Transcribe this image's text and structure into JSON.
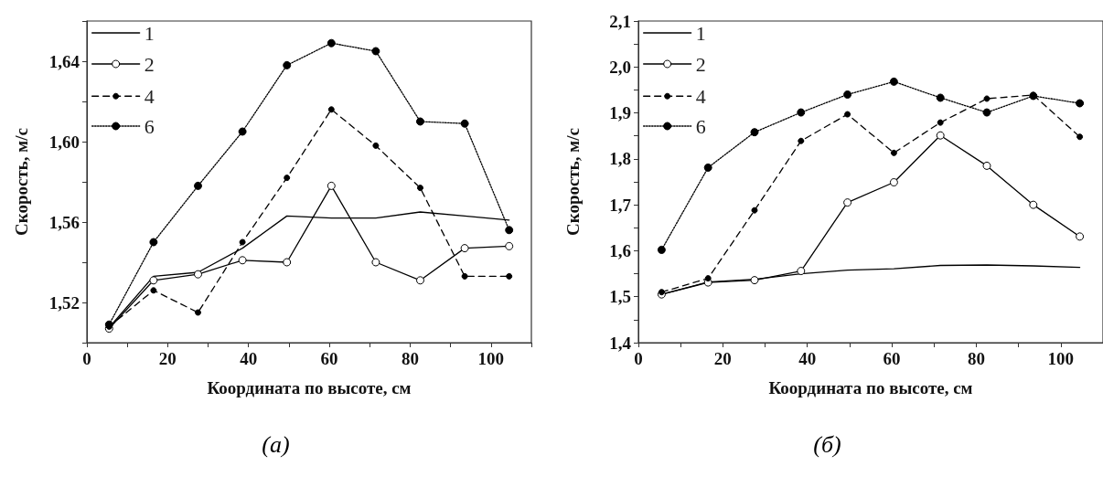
{
  "chart_data": [
    {
      "type": "line",
      "xlabel": "Координата по высоте, см",
      "ylabel": "Скорость, м/с",
      "annotations": [
        "(a)"
      ],
      "x": [
        5.5,
        16.5,
        27.5,
        38.5,
        49.5,
        60.5,
        71.5,
        82.5,
        93.5,
        104.5
      ],
      "xlim": [
        0,
        110
      ],
      "ylim": [
        1.5,
        1.66
      ],
      "xticks": [
        0,
        {
          "value": 10,
          "label": null
        },
        20,
        {
          "value": 30,
          "label": null
        },
        40,
        {
          "value": 50,
          "label": null
        },
        60,
        {
          "value": 70,
          "label": null
        },
        80,
        {
          "value": 90,
          "label": null
        },
        100,
        {
          "value": 110,
          "label": null
        }
      ],
      "yticks": [
        {
          "value": 1.5,
          "label": null
        },
        {
          "value": 1.52,
          "label": "1,52"
        },
        {
          "value": 1.54,
          "label": null
        },
        {
          "value": 1.56,
          "label": "1,56"
        },
        {
          "value": 1.58,
          "label": null
        },
        {
          "value": 1.6,
          "label": "1,60"
        },
        {
          "value": 1.62,
          "label": null
        },
        {
          "value": 1.64,
          "label": "1,64"
        },
        {
          "value": 1.66,
          "label": null
        }
      ],
      "grid": false,
      "legend": "top left",
      "series": [
        {
          "name": "1",
          "color": "#000000",
          "marker": "none",
          "line_style": "solid",
          "values": [
            1.5075,
            1.533,
            1.535,
            1.547,
            1.563,
            1.562,
            1.562,
            1.565,
            1.563,
            1.561
          ]
        },
        {
          "name": "2",
          "color": "#000000",
          "marker": "circle",
          "line_style": "solid",
          "values": [
            1.507,
            1.531,
            1.534,
            1.541,
            1.54,
            1.578,
            1.54,
            1.531,
            1.547,
            1.548
          ]
        },
        {
          "name": "4",
          "color": "#000000",
          "marker": "circle",
          "line_style": "dashed",
          "values": [
            1.508,
            1.526,
            1.515,
            1.55,
            1.582,
            1.616,
            1.598,
            1.577,
            1.533,
            1.533
          ]
        },
        {
          "name": "6",
          "color": "#000000",
          "marker": "circle",
          "line_style": "dotted",
          "values": [
            1.509,
            1.55,
            1.578,
            1.605,
            1.638,
            1.649,
            1.645,
            1.61,
            1.609,
            1.556
          ]
        }
      ]
    },
    {
      "type": "line",
      "xlabel": "Координата по высоте, см",
      "ylabel": "Скорость, м/с",
      "annotations": [
        "(б)"
      ],
      "x": [
        5.5,
        16.5,
        27.5,
        38.5,
        49.5,
        60.5,
        71.5,
        82.5,
        93.5,
        104.5
      ],
      "xlim": [
        0,
        110
      ],
      "ylim": [
        1.4,
        2.1
      ],
      "xticks": [
        0,
        {
          "value": 10,
          "label": null
        },
        20,
        {
          "value": 30,
          "label": null
        },
        40,
        {
          "value": 50,
          "label": null
        },
        60,
        {
          "value": 70,
          "label": null
        },
        80,
        {
          "value": 90,
          "label": null
        },
        100,
        {
          "value": 110,
          "label": null
        }
      ],
      "yticks": [
        {
          "value": 1.4,
          "label": "1,4"
        },
        {
          "value": 1.45,
          "label": null
        },
        {
          "value": 1.5,
          "label": "1,5"
        },
        {
          "value": 1.55,
          "label": null
        },
        {
          "value": 1.6,
          "label": "1,6"
        },
        {
          "value": 1.65,
          "label": null
        },
        {
          "value": 1.7,
          "label": "1,7"
        },
        {
          "value": 1.75,
          "label": null
        },
        {
          "value": 1.8,
          "label": "1,8"
        },
        {
          "value": 1.85,
          "label": null
        },
        {
          "value": 1.9,
          "label": "1,9"
        },
        {
          "value": 1.95,
          "label": null
        },
        {
          "value": 2.0,
          "label": "2,0"
        },
        {
          "value": 2.05,
          "label": null
        },
        {
          "value": 2.1,
          "label": "2,1"
        }
      ],
      "grid": false,
      "legend": "top left",
      "series": [
        {
          "name": "1",
          "color": "#000000",
          "marker": "none",
          "line_style": "solid",
          "values": [
            1.505,
            1.532,
            1.538,
            1.55,
            1.558,
            1.561,
            1.568,
            1.569,
            1.567,
            1.564
          ]
        },
        {
          "name": "2",
          "color": "#000000",
          "marker": "circle",
          "line_style": "solid",
          "values": [
            1.505,
            1.531,
            1.536,
            1.556,
            1.705,
            1.749,
            1.851,
            1.785,
            1.7,
            1.631
          ]
        },
        {
          "name": "4",
          "color": "#000000",
          "marker": "circle",
          "line_style": "dashed",
          "values": [
            1.51,
            1.54,
            1.688,
            1.839,
            1.897,
            1.813,
            1.879,
            1.931,
            1.939,
            1.848
          ]
        },
        {
          "name": "6",
          "color": "#000000",
          "marker": "circle",
          "line_style": "dotted",
          "values": [
            1.602,
            1.781,
            1.858,
            1.901,
            1.94,
            1.968,
            1.933,
            1.901,
            1.937,
            1.921
          ]
        }
      ]
    }
  ]
}
